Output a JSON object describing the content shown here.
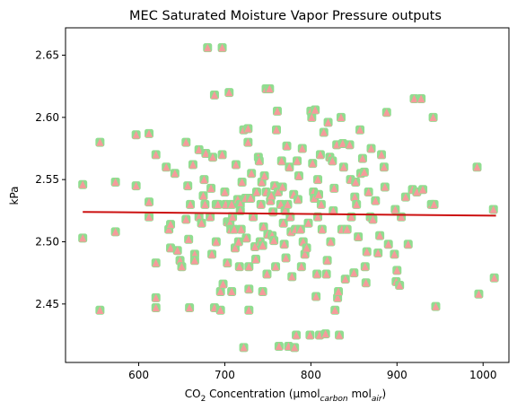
{
  "chart_data": {
    "type": "scatter",
    "title": "MEC Saturated Moisture Vapor Pressure outputs",
    "xlabel_parts": {
      "co": "CO",
      "two": "2",
      "mid": " Concentration (µmol",
      "carbon": "carbon",
      "mol": " mol",
      "air": "air",
      "close": ")"
    },
    "ylabel": "kPa",
    "xlim": [
      515,
      1030
    ],
    "ylim": [
      2.403,
      2.672
    ],
    "x_ticks": [
      "600",
      "700",
      "800",
      "900",
      "1000"
    ],
    "x_tick_values": [
      600,
      700,
      800,
      900,
      1000
    ],
    "y_ticks": [
      "2.45",
      "2.50",
      "2.55",
      "2.60",
      "2.65"
    ],
    "y_tick_values": [
      2.45,
      2.5,
      2.55,
      2.6,
      2.65
    ],
    "grid": false,
    "legend": "none",
    "colors": {
      "marker_back": "#90dd90",
      "marker_front": "#f59b9b",
      "trend": "#cc1111",
      "axis": "#000000"
    },
    "trend_line": {
      "x": [
        535,
        1015
      ],
      "y": [
        2.524,
        2.521
      ]
    },
    "points": [
      [
        535,
        2.546
      ],
      [
        535,
        2.503
      ],
      [
        555,
        2.58
      ],
      [
        555,
        2.445
      ],
      [
        573,
        2.548
      ],
      [
        573,
        2.508
      ],
      [
        597,
        2.586
      ],
      [
        597,
        2.545
      ],
      [
        612,
        2.587
      ],
      [
        612,
        2.532
      ],
      [
        612,
        2.52
      ],
      [
        620,
        2.57
      ],
      [
        620,
        2.483
      ],
      [
        620,
        2.455
      ],
      [
        620,
        2.447
      ],
      [
        632,
        2.56
      ],
      [
        635,
        2.51
      ],
      [
        637,
        2.514
      ],
      [
        637,
        2.495
      ],
      [
        642,
        2.555
      ],
      [
        645,
        2.493
      ],
      [
        648,
        2.485
      ],
      [
        650,
        2.48
      ],
      [
        655,
        2.58
      ],
      [
        655,
        2.518
      ],
      [
        657,
        2.545
      ],
      [
        658,
        2.502
      ],
      [
        659,
        2.447
      ],
      [
        660,
        2.53
      ],
      [
        663,
        2.562
      ],
      [
        665,
        2.49
      ],
      [
        665,
        2.485
      ],
      [
        670,
        2.574
      ],
      [
        670,
        2.52
      ],
      [
        673,
        2.515
      ],
      [
        675,
        2.537
      ],
      [
        676,
        2.55
      ],
      [
        677,
        2.53
      ],
      [
        678,
        2.571
      ],
      [
        680,
        2.656
      ],
      [
        683,
        2.52
      ],
      [
        684,
        2.543
      ],
      [
        685,
        2.49
      ],
      [
        686,
        2.568
      ],
      [
        688,
        2.618
      ],
      [
        688,
        2.447
      ],
      [
        690,
        2.53
      ],
      [
        690,
        2.5
      ],
      [
        692,
        2.53
      ],
      [
        695,
        2.46
      ],
      [
        695,
        2.445
      ],
      [
        697,
        2.57
      ],
      [
        697,
        2.656
      ],
      [
        698,
        2.466
      ],
      [
        700,
        2.54
      ],
      [
        701,
        2.53
      ],
      [
        703,
        2.516
      ],
      [
        703,
        2.483
      ],
      [
        705,
        2.62
      ],
      [
        706,
        2.515
      ],
      [
        707,
        2.51
      ],
      [
        708,
        2.53
      ],
      [
        708,
        2.46
      ],
      [
        709,
        2.52
      ],
      [
        711,
        2.51
      ],
      [
        712,
        2.495
      ],
      [
        713,
        2.562
      ],
      [
        715,
        2.534
      ],
      [
        716,
        2.5
      ],
      [
        717,
        2.48
      ],
      [
        718,
        2.53
      ],
      [
        718,
        2.525
      ],
      [
        719,
        2.51
      ],
      [
        720,
        2.548
      ],
      [
        722,
        2.59
      ],
      [
        722,
        2.415
      ],
      [
        724,
        2.535
      ],
      [
        725,
        2.503
      ],
      [
        727,
        2.58
      ],
      [
        727,
        2.591
      ],
      [
        728,
        2.48
      ],
      [
        728,
        2.462
      ],
      [
        728,
        2.445
      ],
      [
        730,
        2.535
      ],
      [
        731,
        2.555
      ],
      [
        733,
        2.52
      ],
      [
        735,
        2.496
      ],
      [
        736,
        2.486
      ],
      [
        737,
        2.54
      ],
      [
        739,
        2.568
      ],
      [
        740,
        2.565
      ],
      [
        741,
        2.5
      ],
      [
        742,
        2.53
      ],
      [
        743,
        2.548
      ],
      [
        744,
        2.46
      ],
      [
        744,
        2.497
      ],
      [
        745,
        2.512
      ],
      [
        746,
        2.553
      ],
      [
        748,
        2.54
      ],
      [
        748,
        2.623
      ],
      [
        749,
        2.474
      ],
      [
        750,
        2.506
      ],
      [
        752,
        2.623
      ],
      [
        753,
        2.533
      ],
      [
        754,
        2.537
      ],
      [
        755,
        2.505
      ],
      [
        756,
        2.524
      ],
      [
        757,
        2.501
      ],
      [
        758,
        2.545
      ],
      [
        759,
        2.48
      ],
      [
        760,
        2.59
      ],
      [
        761,
        2.605
      ],
      [
        762,
        2.54
      ],
      [
        763,
        2.416
      ],
      [
        765,
        2.53
      ],
      [
        766,
        2.565
      ],
      [
        767,
        2.544
      ],
      [
        768,
        2.515
      ],
      [
        769,
        2.498
      ],
      [
        770,
        2.525
      ],
      [
        771,
        2.487
      ],
      [
        772,
        2.577
      ],
      [
        773,
        2.53
      ],
      [
        774,
        2.416
      ],
      [
        775,
        2.56
      ],
      [
        776,
        2.52
      ],
      [
        777,
        2.508
      ],
      [
        778,
        2.472
      ],
      [
        780,
        2.538
      ],
      [
        781,
        2.415
      ],
      [
        782,
        2.51
      ],
      [
        783,
        2.425
      ],
      [
        784,
        2.565
      ],
      [
        785,
        2.534
      ],
      [
        786,
        2.553
      ],
      [
        788,
        2.51
      ],
      [
        789,
        2.48
      ],
      [
        790,
        2.575
      ],
      [
        791,
        2.5
      ],
      [
        793,
        2.49
      ],
      [
        795,
        2.495
      ],
      [
        797,
        2.515
      ],
      [
        799,
        2.425
      ],
      [
        800,
        2.605
      ],
      [
        801,
        2.6
      ],
      [
        802,
        2.563
      ],
      [
        803,
        2.54
      ],
      [
        804,
        2.535
      ],
      [
        805,
        2.606
      ],
      [
        806,
        2.456
      ],
      [
        807,
        2.474
      ],
      [
        808,
        2.52
      ],
      [
        808,
        2.55
      ],
      [
        809,
        2.538
      ],
      [
        810,
        2.425
      ],
      [
        811,
        2.57
      ],
      [
        812,
        2.53
      ],
      [
        813,
        2.51
      ],
      [
        815,
        2.588
      ],
      [
        817,
        2.426
      ],
      [
        818,
        2.474
      ],
      [
        819,
        2.485
      ],
      [
        820,
        2.596
      ],
      [
        822,
        2.568
      ],
      [
        823,
        2.5
      ],
      [
        825,
        2.565
      ],
      [
        826,
        2.525
      ],
      [
        827,
        2.543
      ],
      [
        828,
        2.445
      ],
      [
        830,
        2.578
      ],
      [
        831,
        2.455
      ],
      [
        832,
        2.46
      ],
      [
        833,
        2.425
      ],
      [
        835,
        2.6
      ],
      [
        836,
        2.51
      ],
      [
        837,
        2.579
      ],
      [
        838,
        2.56
      ],
      [
        840,
        2.47
      ],
      [
        842,
        2.51
      ],
      [
        845,
        2.578
      ],
      [
        846,
        2.55
      ],
      [
        847,
        2.52
      ],
      [
        850,
        2.475
      ],
      [
        851,
        2.536
      ],
      [
        852,
        2.548
      ],
      [
        853,
        2.53
      ],
      [
        855,
        2.504
      ],
      [
        857,
        2.59
      ],
      [
        858,
        2.555
      ],
      [
        860,
        2.567
      ],
      [
        862,
        2.556
      ],
      [
        863,
        2.48
      ],
      [
        864,
        2.467
      ],
      [
        865,
        2.492
      ],
      [
        867,
        2.54
      ],
      [
        869,
        2.52
      ],
      [
        870,
        2.575
      ],
      [
        872,
        2.518
      ],
      [
        875,
        2.533
      ],
      [
        878,
        2.491
      ],
      [
        880,
        2.505
      ],
      [
        882,
        2.57
      ],
      [
        885,
        2.56
      ],
      [
        886,
        2.544
      ],
      [
        888,
        2.604
      ],
      [
        890,
        2.498
      ],
      [
        897,
        2.49
      ],
      [
        898,
        2.526
      ],
      [
        899,
        2.468
      ],
      [
        900,
        2.477
      ],
      [
        903,
        2.465
      ],
      [
        905,
        2.52
      ],
      [
        910,
        2.536
      ],
      [
        913,
        2.498
      ],
      [
        918,
        2.542
      ],
      [
        920,
        2.615
      ],
      [
        923,
        2.54
      ],
      [
        928,
        2.615
      ],
      [
        930,
        2.542
      ],
      [
        940,
        2.53
      ],
      [
        942,
        2.6
      ],
      [
        943,
        2.53
      ],
      [
        945,
        2.448
      ],
      [
        993,
        2.56
      ],
      [
        995,
        2.458
      ],
      [
        1012,
        2.526
      ],
      [
        1013,
        2.471
      ]
    ]
  }
}
